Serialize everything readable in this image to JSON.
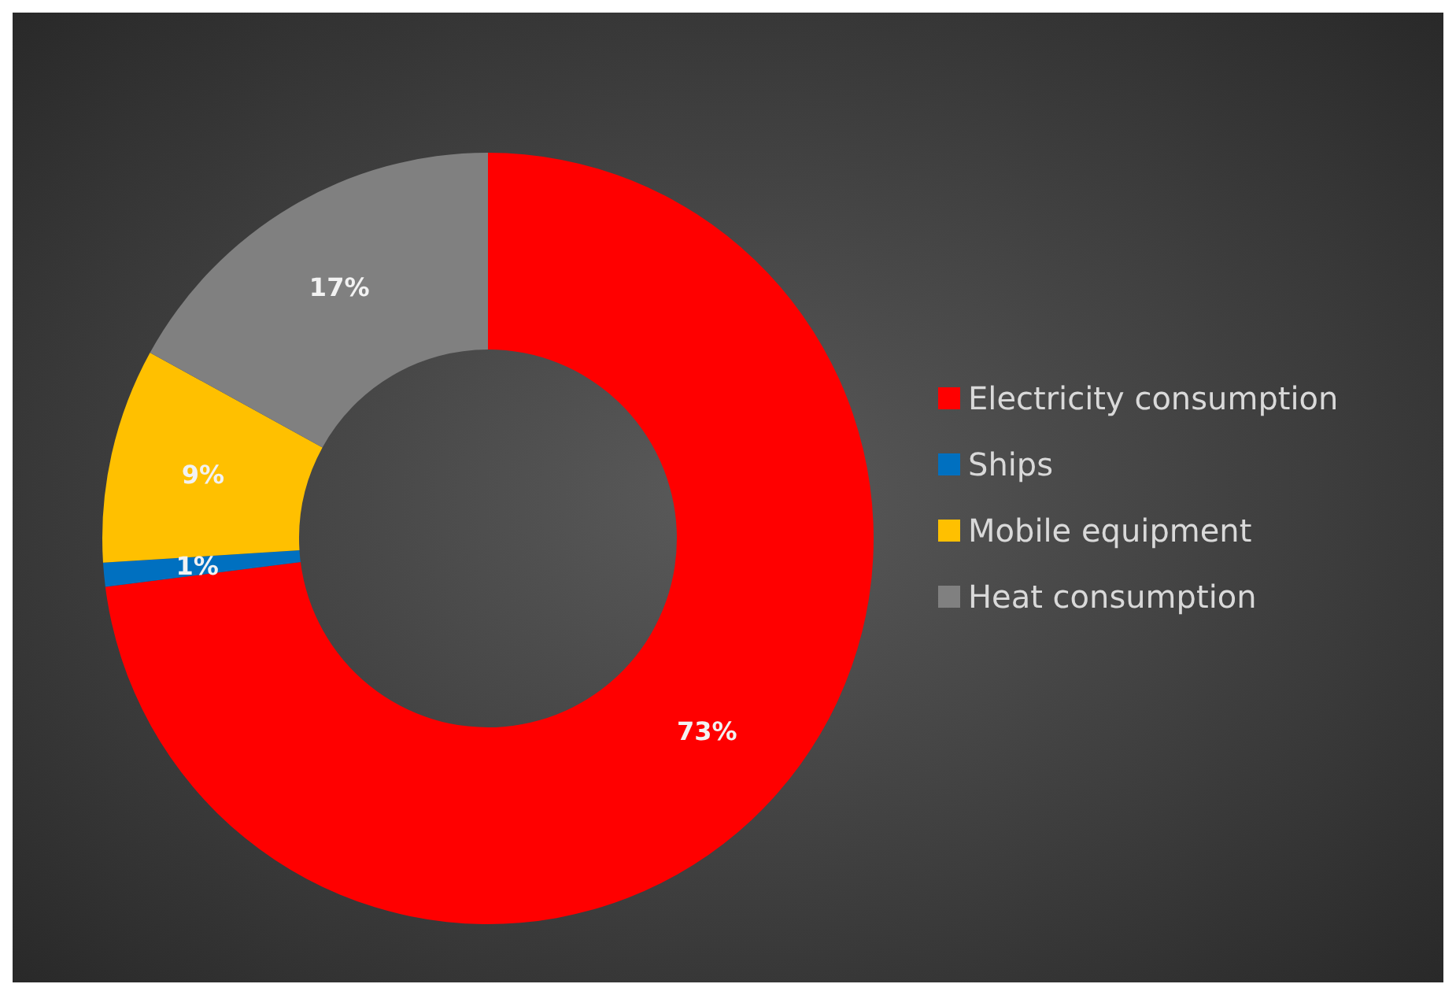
{
  "chart_data": {
    "type": "donut",
    "categories": [
      "Electricity consumption",
      "Ships",
      "Mobile equipment",
      "Heat consumption"
    ],
    "values": [
      73,
      1,
      9,
      17
    ],
    "colors": [
      "#ff0000",
      "#0070c0",
      "#ffc000",
      "#808080"
    ],
    "value_labels": [
      "73%",
      "1%",
      "9%",
      "17%"
    ],
    "legend": "right"
  }
}
